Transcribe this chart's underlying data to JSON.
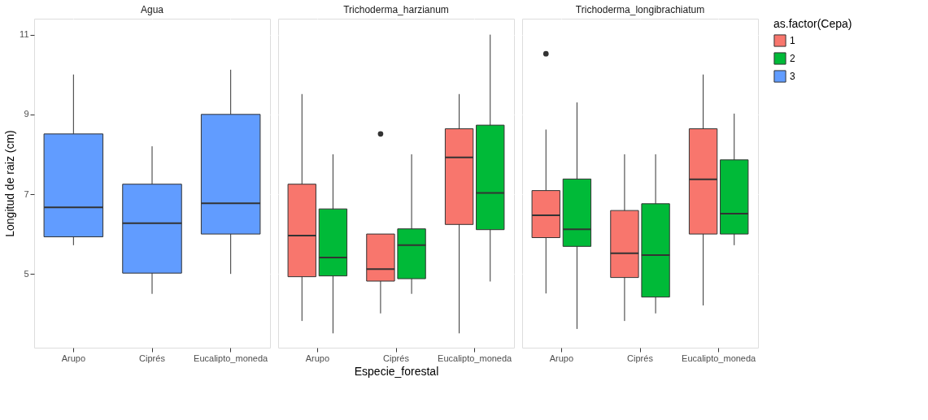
{
  "chart_data": [
    {
      "type": "box",
      "title": "Agua",
      "ylabel": "Longitud de raiz (cm)",
      "categories": [
        "Arupo",
        "Ciprés",
        "Eucalipto_moneda"
      ],
      "ylim": [
        3.15,
        11.4
      ],
      "yticks": [
        5,
        7,
        9,
        11
      ],
      "grid": true,
      "legend": "right",
      "legend_title": "as.factor(Cepa)",
      "series": [
        {
          "name": "3",
          "color": "#619cff",
          "boxes": [
            {
              "low": 5.72,
              "q1": 5.93,
              "median": 6.67,
              "q3": 8.51,
              "high": 10.0
            },
            {
              "low": 4.5,
              "q1": 5.02,
              "median": 6.27,
              "q3": 7.25,
              "high": 8.2
            },
            {
              "low": 5.0,
              "q1": 6.0,
              "median": 6.77,
              "q3": 9.0,
              "high": 10.12
            }
          ]
        }
      ]
    },
    {
      "type": "box",
      "title": "Trichoderma_harzianum",
      "xlabel": "Especie_forestal",
      "categories": [
        "Arupo",
        "Ciprés",
        "Eucalipto_moneda"
      ],
      "ylim": [
        3.15,
        11.4
      ],
      "yticks": [
        5,
        7,
        9,
        11
      ],
      "grid": true,
      "tick_labels": "x",
      "legend": "right",
      "series": [
        {
          "name": "1",
          "color": "#f8766d",
          "boxes": [
            {
              "low": 3.82,
              "q1": 4.93,
              "median": 5.96,
              "q3": 7.25,
              "high": 9.51
            },
            {
              "low": 4.01,
              "q1": 4.82,
              "median": 5.12,
              "q3": 6.0,
              "high": 6.0,
              "outliers": [
                8.51
              ]
            },
            {
              "low": 3.51,
              "q1": 6.24,
              "median": 7.92,
              "q3": 8.64,
              "high": 9.51
            }
          ]
        },
        {
          "name": "2",
          "color": "#00ba38",
          "boxes": [
            {
              "low": 3.51,
              "q1": 4.95,
              "median": 5.41,
              "q3": 6.63,
              "high": 8.0
            },
            {
              "low": 4.5,
              "q1": 4.88,
              "median": 5.72,
              "q3": 6.13,
              "high": 8.0
            },
            {
              "low": 4.81,
              "q1": 6.11,
              "median": 7.03,
              "q3": 8.73,
              "high": 11.0
            }
          ]
        }
      ]
    },
    {
      "type": "box",
      "title": "Trichoderma_longibrachiatum",
      "categories": [
        "Arupo",
        "Ciprés",
        "Eucalipto_moneda"
      ],
      "ylim": [
        3.15,
        11.4
      ],
      "yticks": [
        5,
        7,
        9,
        11
      ],
      "grid": true,
      "tick_labels": "x",
      "legend": "right",
      "series": [
        {
          "name": "1",
          "color": "#f8766d",
          "boxes": [
            {
              "low": 4.51,
              "q1": 5.91,
              "median": 6.47,
              "q3": 7.09,
              "high": 8.62,
              "outliers": [
                10.52
              ]
            },
            {
              "low": 3.82,
              "q1": 4.91,
              "median": 5.52,
              "q3": 6.59,
              "high": 8.0
            },
            {
              "low": 4.21,
              "q1": 6.0,
              "median": 7.37,
              "q3": 8.64,
              "high": 10.0
            }
          ]
        },
        {
          "name": "2",
          "color": "#00ba38",
          "boxes": [
            {
              "low": 3.62,
              "q1": 5.69,
              "median": 6.12,
              "q3": 7.38,
              "high": 9.3
            },
            {
              "low": 4.01,
              "q1": 4.42,
              "median": 5.47,
              "q3": 6.76,
              "high": 8.0
            },
            {
              "low": 5.72,
              "q1": 6.0,
              "median": 6.51,
              "q3": 7.86,
              "high": 9.02
            }
          ]
        }
      ]
    }
  ]
}
